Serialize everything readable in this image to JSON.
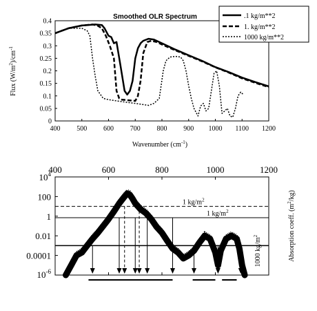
{
  "chart_data": [
    {
      "type": "line",
      "title": "Smoothed OLR Spectrum",
      "xlabel": "Wavenumber (cm",
      "xlabel_sup": "-1",
      "xlabel_end": ")",
      "ylabel_a": "Flux   (W/m",
      "ylabel_sup1": "2",
      "ylabel_b": ")/cm",
      "ylabel_sup2": "-1",
      "xlim": [
        400,
        1200
      ],
      "ylim": [
        0,
        0.4
      ],
      "xticks": [
        "400",
        "500",
        "600",
        "700",
        "800",
        "900",
        "1000",
        "1100",
        "1200"
      ],
      "yticks": [
        "0",
        "0.05",
        "0.1",
        "0.15",
        "0.2",
        "0.25",
        "0.3",
        "0.35",
        "0.4"
      ],
      "legend_position": "top-right",
      "series": [
        {
          "name": ".1 kg/m**2",
          "style": "solid",
          "x": [
            400,
            450,
            500,
            550,
            575,
            585,
            600,
            610,
            620,
            630,
            645,
            660,
            670,
            680,
            690,
            700,
            710,
            720,
            730,
            750,
            770,
            800,
            850,
            900,
            950,
            1000,
            1050,
            1100,
            1150,
            1200
          ],
          "y": [
            0.35,
            0.37,
            0.381,
            0.385,
            0.383,
            0.37,
            0.34,
            0.335,
            0.31,
            0.315,
            0.22,
            0.12,
            0.105,
            0.12,
            0.16,
            0.25,
            0.29,
            0.31,
            0.32,
            0.328,
            0.325,
            0.31,
            0.285,
            0.262,
            0.24,
            0.215,
            0.195,
            0.173,
            0.155,
            0.138
          ]
        },
        {
          "name": "1. kg/m**2",
          "style": "dash",
          "x": [
            400,
            450,
            500,
            540,
            560,
            575,
            590,
            605,
            620,
            630,
            640,
            650,
            700,
            710,
            720,
            730,
            745,
            760,
            780,
            800,
            850,
            900,
            950,
            1000,
            1050,
            1100,
            1150,
            1200
          ],
          "y": [
            0.35,
            0.37,
            0.381,
            0.385,
            0.38,
            0.37,
            0.34,
            0.3,
            0.25,
            0.12,
            0.09,
            0.085,
            0.08,
            0.1,
            0.16,
            0.27,
            0.315,
            0.32,
            0.315,
            0.305,
            0.282,
            0.26,
            0.238,
            0.214,
            0.193,
            0.17,
            0.152,
            0.135
          ]
        },
        {
          "name": "1000 kg/m**2",
          "style": "dot",
          "x": [
            400,
            450,
            500,
            520,
            530,
            540,
            550,
            560,
            580,
            600,
            650,
            700,
            750,
            770,
            790,
            805,
            815,
            830,
            850,
            870,
            880,
            890,
            900,
            910,
            920,
            935,
            945,
            955,
            965,
            975,
            985,
            995,
            1005,
            1015,
            1025,
            1035,
            1045,
            1055,
            1065,
            1075,
            1085,
            1095,
            1105
          ],
          "y": [
            0.35,
            0.37,
            0.37,
            0.36,
            0.34,
            0.25,
            0.18,
            0.12,
            0.09,
            0.085,
            0.077,
            0.07,
            0.062,
            0.07,
            0.09,
            0.2,
            0.24,
            0.255,
            0.258,
            0.255,
            0.24,
            0.2,
            0.14,
            0.09,
            0.05,
            0.02,
            0.06,
            0.07,
            0.04,
            0.05,
            0.12,
            0.19,
            0.2,
            0.14,
            0.03,
            0.04,
            0.05,
            0.02,
            0.015,
            0.05,
            0.1,
            0.115,
            0.105
          ]
        }
      ]
    },
    {
      "type": "line",
      "title": "",
      "yscale": "log",
      "xlim": [
        400,
        1200
      ],
      "ylim": [
        1e-06,
        10000
      ],
      "xticks": [
        "400",
        "600",
        "800",
        "1000",
        "1200"
      ],
      "ytick_base": "10",
      "ytick_exp_top": "4",
      "ytick_exp_bottom": "-6",
      "yticks_mid": [
        "100",
        "1",
        "0.01",
        "0.0001"
      ],
      "ylabel": "Absorption coeff. (m",
      "ylabel_sup": "2",
      "ylabel_end": "/kg)",
      "annotations": {
        "ref_levels": [
          {
            "label": "1 kg/m",
            "sup": "2",
            "value": 10,
            "style": "dash"
          },
          {
            "label": "1 kg/m",
            "sup": "2",
            "value": 0.7,
            "style": "solid"
          },
          {
            "label": "1000 kg/m",
            "sup": "2",
            "value": 0.001,
            "style": "solid"
          }
        ],
        "arrows_x": [
          540,
          640,
          700,
          745,
          840,
          920,
          1010,
          1095
        ],
        "dashed_drop_x": [
          660,
          715
        ],
        "bars": [
          [
            525,
            840
          ],
          [
            915,
            1000
          ],
          [
            1025,
            1080
          ]
        ]
      },
      "series": [
        {
          "name": "",
          "x": [
            440,
            460,
            480,
            500,
            520,
            540,
            560,
            580,
            600,
            620,
            640,
            660,
            670,
            680,
            690,
            700,
            720,
            740,
            760,
            780,
            800,
            820,
            840,
            860,
            880,
            900,
            920,
            940,
            960,
            980,
            1000,
            1010,
            1020,
            1040,
            1060,
            1080,
            1090,
            1100,
            1110
          ],
          "y": [
            1e-06,
            1e-05,
            0.0001,
            0.0002,
            0.001,
            0.005,
            0.02,
            0.1,
            0.5,
            3,
            20,
            100,
            200,
            150,
            60,
            20,
            5,
            2,
            0.5,
            0.08,
            0.02,
            0.003,
            0.0005,
            0.0002,
            5e-05,
            0.0001,
            0.0003,
            0.002,
            0.01,
            0.005,
            0.0002,
            1e-05,
            0.0003,
            0.005,
            0.01,
            0.005,
            0.0005,
            1e-05,
            1e-06
          ]
        }
      ]
    }
  ]
}
